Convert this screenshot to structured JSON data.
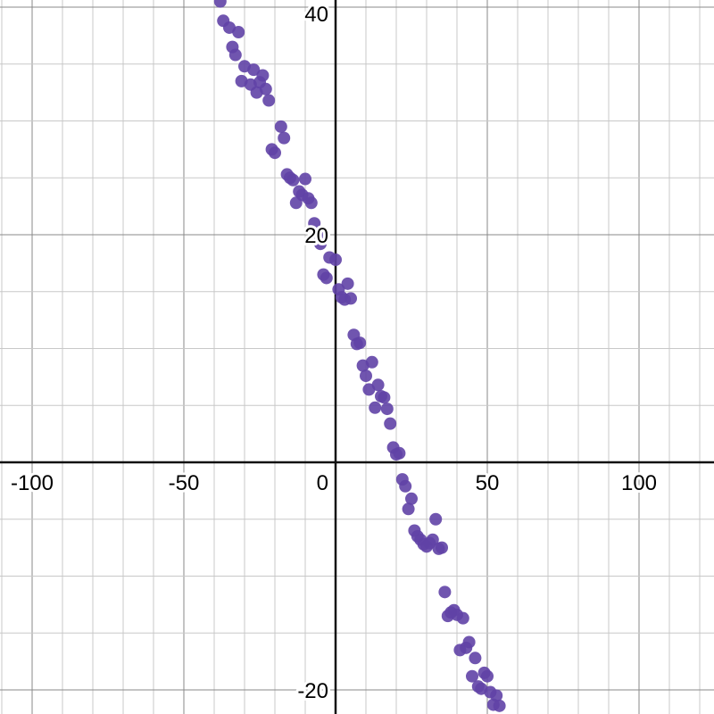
{
  "chart_data": {
    "type": "scatter",
    "title": "",
    "xlabel": "",
    "ylabel": "",
    "xlim": [
      -110,
      125
    ],
    "ylim": [
      -22,
      40.5
    ],
    "grid": true,
    "x_minor_step": 10,
    "x_major_step": 50,
    "y_minor_step": 5,
    "y_major_step": 20,
    "x_tick_labels": [
      "-100",
      "-50",
      "0",
      "50",
      "100"
    ],
    "x_tick_values": [
      -100,
      -50,
      0,
      50,
      100
    ],
    "y_tick_labels": [
      "40",
      "20",
      "-20"
    ],
    "y_tick_values": [
      40,
      20,
      -20
    ],
    "point_color": "#6042a6",
    "series": [
      {
        "x": [
          -38,
          -37,
          -35,
          -34,
          -33,
          -32,
          -31,
          -30,
          -28,
          -27,
          -26,
          -25,
          -24,
          -23,
          -22,
          -21,
          -20,
          -18,
          -17,
          -16,
          -15,
          -14,
          -13,
          -12,
          -11,
          -10,
          -9,
          -8,
          -7,
          -6,
          -5,
          -4,
          -3,
          -2,
          0,
          1,
          2,
          3,
          4,
          5,
          6,
          7,
          8,
          9,
          10,
          11,
          12,
          13,
          14,
          15,
          16,
          17,
          18,
          19,
          20,
          21,
          22,
          23,
          24,
          25,
          26,
          27,
          28,
          29,
          30,
          31,
          32,
          33,
          34,
          35,
          36,
          37,
          38,
          39,
          40,
          41,
          42,
          43,
          44,
          45,
          46,
          47,
          48,
          49,
          50,
          51,
          52,
          53,
          54
        ],
        "y": [
          40.5,
          38.8,
          38.2,
          36.5,
          35.8,
          37.8,
          33.5,
          34.8,
          33.2,
          34.5,
          32.5,
          33.4,
          34.0,
          32.8,
          31.8,
          27.5,
          27.2,
          29.5,
          28.5,
          25.3,
          25.0,
          24.8,
          22.8,
          23.8,
          23.5,
          24.9,
          23.2,
          22.8,
          21.0,
          20.0,
          19.2,
          16.5,
          16.2,
          18.0,
          17.8,
          15.2,
          14.5,
          14.3,
          15.7,
          14.4,
          11.2,
          10.4,
          10.5,
          8.5,
          7.6,
          6.4,
          8.8,
          4.8,
          6.8,
          5.8,
          5.7,
          4.7,
          3.4,
          1.3,
          0.7,
          0.8,
          -1.5,
          -2.1,
          -4.1,
          -3.2,
          -6.0,
          -6.5,
          -6.8,
          -7.2,
          -7.4,
          -7.1,
          -6.8,
          -5.0,
          -7.6,
          -7.5,
          -11.4,
          -13.5,
          -13.2,
          -13.0,
          -13.4,
          -16.5,
          -13.7,
          -16.3,
          -15.8,
          -18.8,
          -17.2,
          -19.7,
          -19.9,
          -18.5,
          -18.8,
          -20.2,
          -21.3,
          -20.5,
          -21.4
        ]
      }
    ]
  }
}
